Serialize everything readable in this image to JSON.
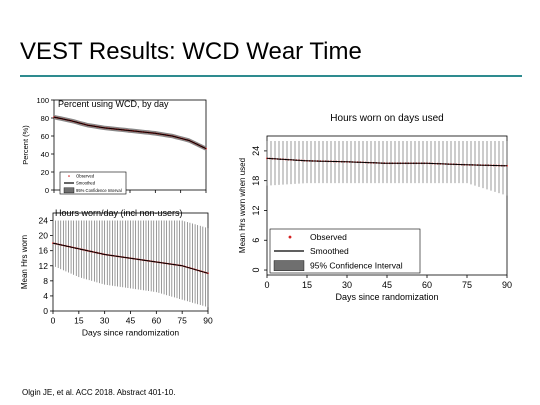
{
  "slide": {
    "title": "VEST Results: WCD Wear Time",
    "citation": "Olgin JE, et al. ACC 2018. Abstract 401-10.",
    "accent_color": "#2e8b8f"
  },
  "chart_data": [
    {
      "id": "percent",
      "type": "line",
      "title": "Percent using WCD, by day",
      "xlabel": "",
      "ylabel": "Percent (%)",
      "xlim": [
        0,
        90
      ],
      "ylim": [
        0,
        100
      ],
      "yticks": [
        "0",
        "20",
        "40",
        "60",
        "80",
        "100"
      ],
      "xticks": [],
      "legend": {
        "position": "bottom-left",
        "entries": [
          "Observed",
          "Smoothed",
          "95% Confidence Interval"
        ]
      },
      "series": [
        {
          "name": "Observed",
          "style": "points",
          "color": "#d42020",
          "x": [
            0,
            10,
            20,
            30,
            40,
            50,
            60,
            70,
            80,
            90
          ],
          "y": [
            81,
            77,
            72,
            69,
            67,
            65,
            63,
            60,
            55,
            46
          ]
        },
        {
          "name": "Smoothed",
          "style": "line",
          "color": "#000000",
          "x": [
            0,
            10,
            20,
            30,
            40,
            50,
            60,
            70,
            80,
            90
          ],
          "y": [
            81,
            77,
            72,
            69,
            67,
            65,
            63,
            60,
            55,
            46
          ]
        }
      ],
      "ci_halfwidth": 2.5
    },
    {
      "id": "hours-all",
      "type": "line",
      "title": "Hours worn/day (incl non-users)",
      "xlabel": "Days since randomization",
      "ylabel": "Mean Hrs worn",
      "xlim": [
        0,
        90
      ],
      "ylim": [
        0,
        26
      ],
      "yticks": [
        "0",
        "4",
        "8",
        "12",
        "16",
        "20",
        "24"
      ],
      "xticks": [
        "0",
        "15",
        "30",
        "45",
        "60",
        "75",
        "90"
      ],
      "series": [
        {
          "name": "Observed",
          "style": "points",
          "color": "#d42020",
          "x": [
            0,
            15,
            30,
            45,
            60,
            75,
            90
          ],
          "y": [
            18,
            16.5,
            15,
            14,
            13,
            12,
            10
          ]
        },
        {
          "name": "Smoothed",
          "style": "line",
          "color": "#000000",
          "x": [
            0,
            15,
            30,
            45,
            60,
            75,
            90
          ],
          "y": [
            18,
            16.5,
            15,
            14,
            13,
            12,
            10
          ]
        }
      ],
      "ci": {
        "lower": [
          12,
          9,
          7,
          6,
          5,
          3,
          1
        ],
        "upper": [
          24,
          24,
          24,
          24,
          24,
          24,
          22
        ]
      }
    },
    {
      "id": "hours-used",
      "type": "line",
      "title": "Hours worn on days used",
      "xlabel": "Days since randomization",
      "ylabel": "Mean Hrs worn when used",
      "xlim": [
        0,
        90
      ],
      "ylim": [
        -1,
        27
      ],
      "yticks": [
        "0",
        "6",
        "12",
        "18",
        "24"
      ],
      "xticks": [
        "0",
        "15",
        "30",
        "45",
        "60",
        "75",
        "90"
      ],
      "legend": {
        "position": "bottom-left",
        "entries": [
          "Observed",
          "Smoothed",
          "95% Confidence Interval"
        ]
      },
      "series": [
        {
          "name": "Observed",
          "style": "points",
          "color": "#d42020",
          "x": [
            0,
            15,
            30,
            45,
            60,
            75,
            90
          ],
          "y": [
            22.5,
            22,
            21.8,
            21.5,
            21.5,
            21.2,
            21
          ]
        },
        {
          "name": "Smoothed",
          "style": "line",
          "color": "#000000",
          "x": [
            0,
            15,
            30,
            45,
            60,
            75,
            90
          ],
          "y": [
            22.5,
            22,
            21.8,
            21.5,
            21.5,
            21.2,
            21
          ]
        }
      ],
      "ci": {
        "lower": [
          17,
          17.5,
          17.5,
          17.5,
          17.5,
          17.5,
          15
        ],
        "upper": [
          26,
          26,
          26,
          26,
          26,
          26,
          26
        ]
      }
    }
  ]
}
